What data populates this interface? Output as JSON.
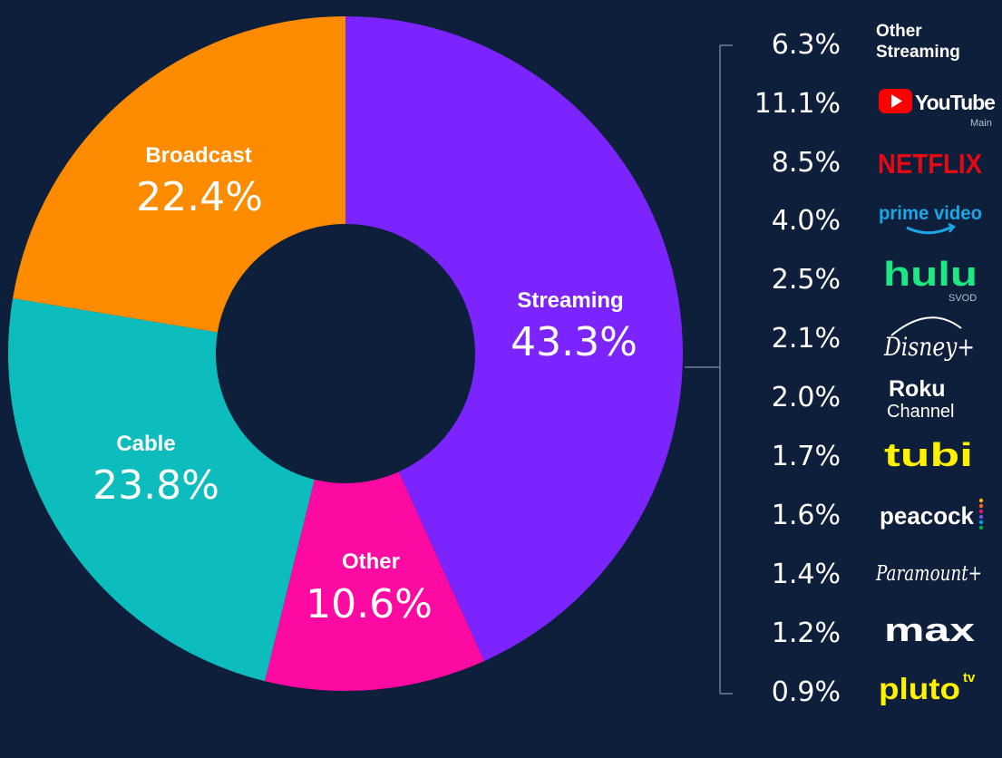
{
  "chart_data": [
    {
      "type": "pie",
      "variant": "donut",
      "categories": [
        "Streaming",
        "Other",
        "Cable",
        "Broadcast"
      ],
      "values": [
        43.3,
        10.6,
        23.8,
        22.4
      ],
      "labels": [
        "43.3%",
        "10.6%",
        "23.8%",
        "22.4%"
      ],
      "colors": [
        "#7b24fd",
        "#fc0aa1",
        "#0dbcbc",
        "#fd8b00"
      ]
    },
    {
      "type": "table",
      "title": "",
      "columns": [
        "share",
        "service"
      ],
      "rows": [
        {
          "value": 6.3,
          "label": "6.3%",
          "service": "Other Streaming",
          "line1": "Other",
          "line2": "Streaming"
        },
        {
          "value": 11.1,
          "label": "11.1%",
          "service": "YouTube",
          "sub": "Main"
        },
        {
          "value": 8.5,
          "label": "8.5%",
          "service": "NETFLIX"
        },
        {
          "value": 4.0,
          "label": "4.0%",
          "service": "prime video"
        },
        {
          "value": 2.5,
          "label": "2.5%",
          "service": "hulu",
          "sub": "SVOD"
        },
        {
          "value": 2.1,
          "label": "2.1%",
          "service": "Disney+"
        },
        {
          "value": 2.0,
          "label": "2.0%",
          "service": "Roku Channel",
          "line1": "Roku",
          "line2": "Channel"
        },
        {
          "value": 1.7,
          "label": "1.7%",
          "service": "tubi"
        },
        {
          "value": 1.6,
          "label": "1.6%",
          "service": "peacock"
        },
        {
          "value": 1.4,
          "label": "1.4%",
          "service": "Paramount+"
        },
        {
          "value": 1.2,
          "label": "1.2%",
          "service": "max"
        },
        {
          "value": 0.9,
          "label": "0.9%",
          "service": "pluto tv",
          "line1": "pluto",
          "line2": "tv"
        }
      ]
    }
  ],
  "colors": {
    "background": "#0e1f3b",
    "youtube_red": "#ff0000",
    "netflix_red": "#e50914",
    "prime_blue": "#1ba7e6",
    "hulu_green": "#1ce783",
    "tubi_yellow": "#fff200",
    "pluto_yellow": "#fff200",
    "bracket": "#6e7f9c"
  }
}
